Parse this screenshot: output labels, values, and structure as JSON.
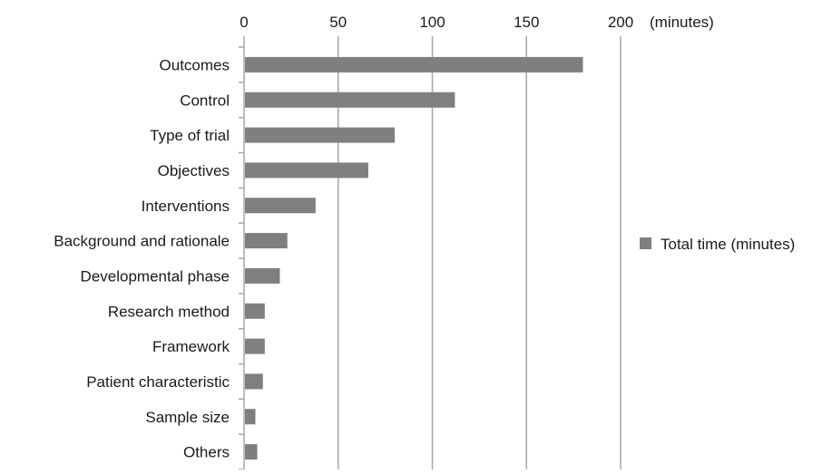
{
  "chart_data": {
    "type": "bar",
    "orientation": "horizontal",
    "categories": [
      "Outcomes",
      "Control",
      "Type of trial",
      "Objectives",
      "Interventions",
      "Background and rationale",
      "Developmental phase",
      "Research method",
      "Framework",
      "Patient characteristic",
      "Sample size",
      "Others"
    ],
    "series": [
      {
        "name": "Total time (minutes)",
        "values": [
          180,
          112,
          80,
          66,
          38,
          23,
          19,
          11,
          11,
          10,
          6,
          7
        ],
        "color": "#7f7f7f"
      }
    ],
    "xlim": [
      0,
      200
    ],
    "xticks": [
      0,
      50,
      100,
      150,
      200
    ],
    "xtick_labels": [
      "0",
      "50",
      "100",
      "150",
      "200"
    ],
    "xlabel": "(minutes)",
    "xaxis_position": "top",
    "grid": "vertical",
    "grid_color": "#a6a6a6",
    "legend_position": "right",
    "legend": [
      "Total time (minutes)"
    ]
  }
}
